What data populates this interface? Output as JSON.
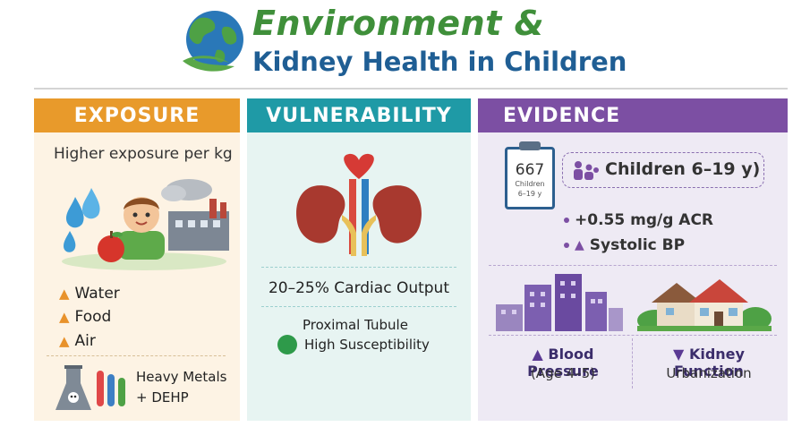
{
  "header": {
    "title_line1": "Environment &",
    "title_line2": "Kidney Health in Children"
  },
  "exposure": {
    "heading": "EXPOSURE",
    "subtitle": "Higher exposure per kg",
    "items": [
      {
        "arrow": "up-arrow",
        "label": "Water"
      },
      {
        "arrow": "up-arrow",
        "label": "Food"
      },
      {
        "arrow": "up-arrow",
        "label": "Air"
      }
    ],
    "metals_line1": "Heavy Metals",
    "metals_line2": "+ DEHP"
  },
  "vulnerability": {
    "heading": "VULNERABILITY",
    "cardiac": "20–25% Cardiac Output",
    "tubule_line1": "Proximal Tubule",
    "tubule_line2": "High Susceptibility"
  },
  "evidence": {
    "heading": "EVIDENCE",
    "clipboard_number": "667",
    "clipboard_line1": "Children",
    "clipboard_line2": "6–19 y",
    "cohort_label": "Children 6–19 y)",
    "findings": [
      {
        "marker": "dot",
        "text": "+0.55 mg/g ACR"
      },
      {
        "marker": "up-arrow",
        "text": "Systolic BP"
      }
    ],
    "blood_pressure_title": "Blood Pressure",
    "blood_pressure_sub": "(Age 4–5)",
    "kidney_function_title": "Kidney Function",
    "kidney_function_sub": "Urbanization"
  },
  "colors": {
    "exposure_accent": "#e89a2b",
    "vulnerability_accent": "#1f9aa6",
    "evidence_accent": "#7c4fa3",
    "title_green": "#3f8f3a",
    "title_blue": "#1f5e94"
  },
  "icons": [
    "globe-leaf-icon",
    "water-drops-icon",
    "child-icon",
    "apple-icon",
    "factory-icon",
    "lab-flask-icon",
    "heart-icon",
    "kidneys-icon",
    "clipboard-icon",
    "family-icon",
    "city-buildings-icon",
    "houses-icon",
    "kidney-small-icon"
  ]
}
